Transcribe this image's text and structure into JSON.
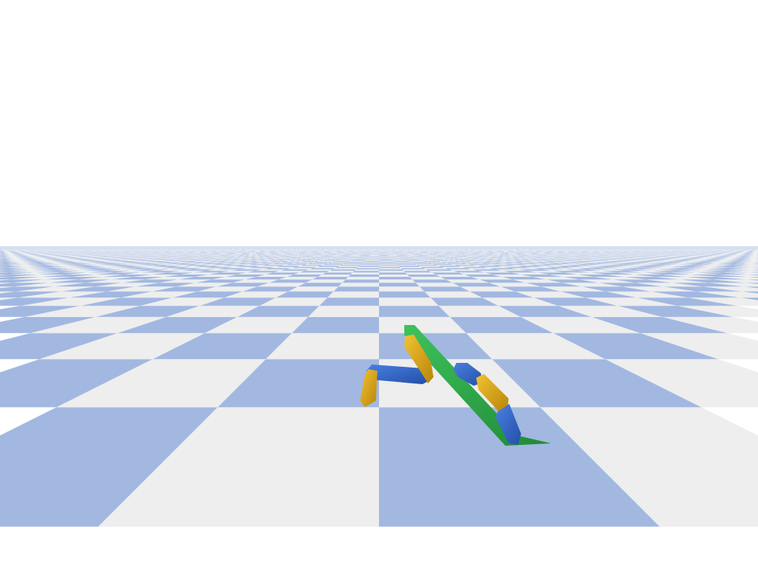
{
  "scene": {
    "type": "physics-simulation-3d-render",
    "sky_color": "#ffffff",
    "ground": {
      "pattern": "checkerboard",
      "color_a": "#a2b8e0",
      "color_b": "#eeeeee"
    },
    "robot": {
      "kind": "legged-walker",
      "parts": [
        {
          "name": "torso",
          "color": "#2ea84a"
        },
        {
          "name": "left-thigh",
          "color": "#3266c4"
        },
        {
          "name": "left-shin",
          "color": "#e0a812"
        },
        {
          "name": "left-foot",
          "color": "#2ea84a"
        },
        {
          "name": "right-thigh",
          "color": "#3266c4"
        },
        {
          "name": "right-shin",
          "color": "#e0a812"
        },
        {
          "name": "right-foot",
          "color": "#3266c4"
        },
        {
          "name": "right-shin-upper",
          "color": "#e0a812"
        }
      ]
    }
  }
}
